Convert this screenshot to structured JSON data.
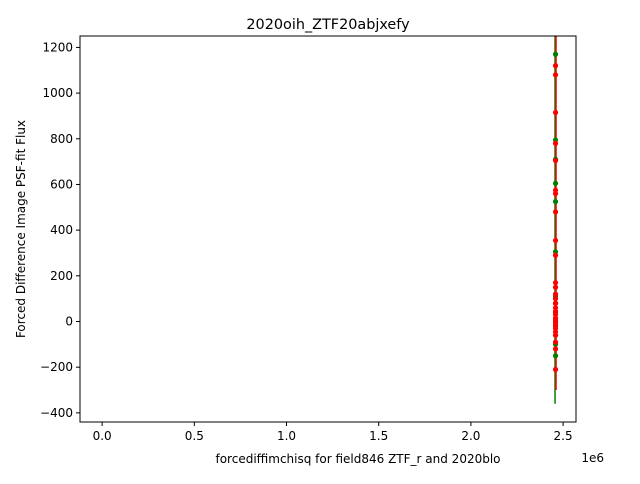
{
  "chart_data": {
    "type": "scatter",
    "title": "2020oih_ZTF20abjxefy",
    "xlabel": "forcediffimchisq for field846 ZTF_r and 2020blo",
    "ylabel": "Forced Difference Image PSF-fit Flux",
    "x_offset_label": "1e6",
    "xlim": [
      -0.12,
      2.57
    ],
    "ylim": [
      -440,
      1250
    ],
    "x_ticks": [
      0.0,
      0.5,
      1.0,
      1.5,
      2.0,
      2.5
    ],
    "x_tick_labels": [
      "0.0",
      "0.5",
      "1.0",
      "1.5",
      "2.0",
      "2.5"
    ],
    "y_ticks": [
      -400,
      -200,
      0,
      200,
      400,
      600,
      800,
      1000,
      1200
    ],
    "y_tick_labels": [
      "−400",
      "−200",
      "0",
      "200",
      "400",
      "600",
      "800",
      "1000",
      "1200"
    ],
    "grid": false,
    "series": [
      {
        "color": "#008000",
        "x": 2.459,
        "errorbar": [
          -360,
          1250
        ],
        "y": [
          1170,
          795,
          710,
          605,
          525,
          305,
          110,
          80,
          40,
          0,
          -20,
          -60,
          -100,
          -150
        ]
      },
      {
        "color": "#ff0000",
        "x": 2.459,
        "errorbar": [
          -300,
          1250
        ],
        "y": [
          1120,
          1080,
          915,
          780,
          705,
          575,
          560,
          480,
          355,
          290,
          170,
          150,
          120,
          100,
          80,
          60,
          45,
          30,
          15,
          5,
          -5,
          -15,
          -30,
          -45,
          -60,
          -90,
          -120,
          -210
        ]
      }
    ]
  }
}
